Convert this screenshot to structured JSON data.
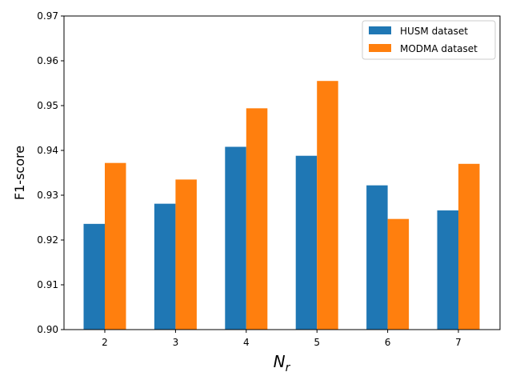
{
  "chart_data": {
    "type": "bar",
    "title": "",
    "xlabel": "N",
    "xlabel_subscript": "r",
    "ylabel": "F1-score",
    "categories": [
      "2",
      "3",
      "4",
      "5",
      "6",
      "7"
    ],
    "series": [
      {
        "name": "HUSM dataset",
        "color": "#1f77b4",
        "values": [
          0.9236,
          0.9281,
          0.9408,
          0.9388,
          0.9322,
          0.9266
        ]
      },
      {
        "name": "MODMA dataset",
        "color": "#ff7f0e",
        "values": [
          0.9372,
          0.9335,
          0.9494,
          0.9555,
          0.9247,
          0.937
        ]
      }
    ],
    "ylim": [
      0.9,
      0.97
    ],
    "yticks": [
      "0.90",
      "0.91",
      "0.92",
      "0.93",
      "0.94",
      "0.95",
      "0.96",
      "0.97"
    ],
    "grid": false,
    "legend_position": "top-right"
  }
}
